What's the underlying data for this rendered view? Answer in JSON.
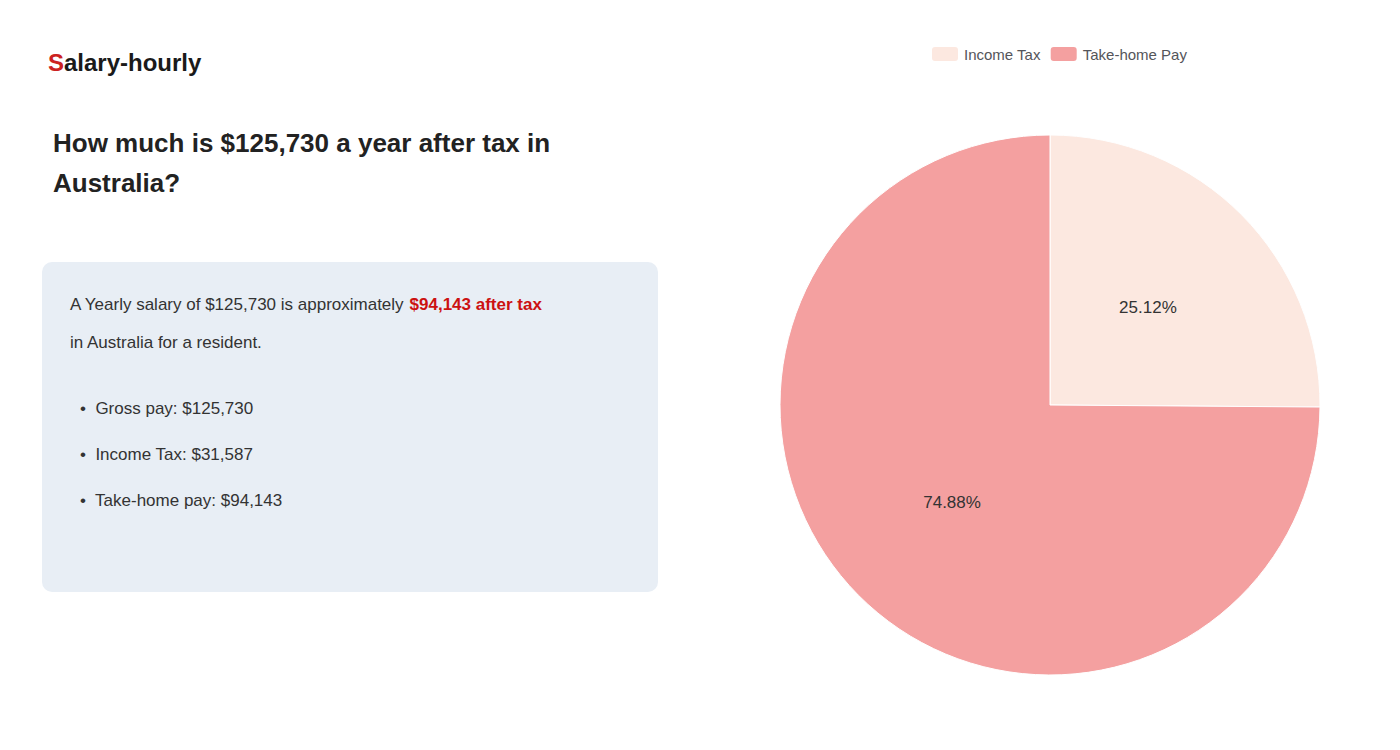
{
  "chart_data": {
    "type": "pie",
    "title": "How much is $125,730 a year after tax in\nAustralia?",
    "annotations": [
      {
        "text": "S",
        "color": "#cc2222"
      },
      {
        "text": "alary-hourly",
        "color": "#1a1a1a"
      },
      {
        "text": "A Yearly salary of $125,730 is approximately ",
        "color": "#333333"
      },
      {
        "text": "$94,143 after tax",
        "color": "#cc1111"
      },
      {
        "text": "in Australia for a resident.",
        "color": "#333333"
      },
      {
        "text": "•  Gross pay: $125,730",
        "color": "#333333"
      },
      {
        "text": "•  Income Tax: $31,587",
        "color": "#333333"
      },
      {
        "text": "•  Take-home pay: $94,143",
        "color": "#333333"
      }
    ],
    "categories": [
      "Income Tax",
      "Take-home Pay"
    ],
    "values": [
      25.12,
      74.88
    ],
    "value_labels": [
      "25.12%",
      "74.88%"
    ],
    "colors": [
      "#fce8e0",
      "#f4a0a0"
    ],
    "data_labels": true,
    "legend": "top"
  }
}
